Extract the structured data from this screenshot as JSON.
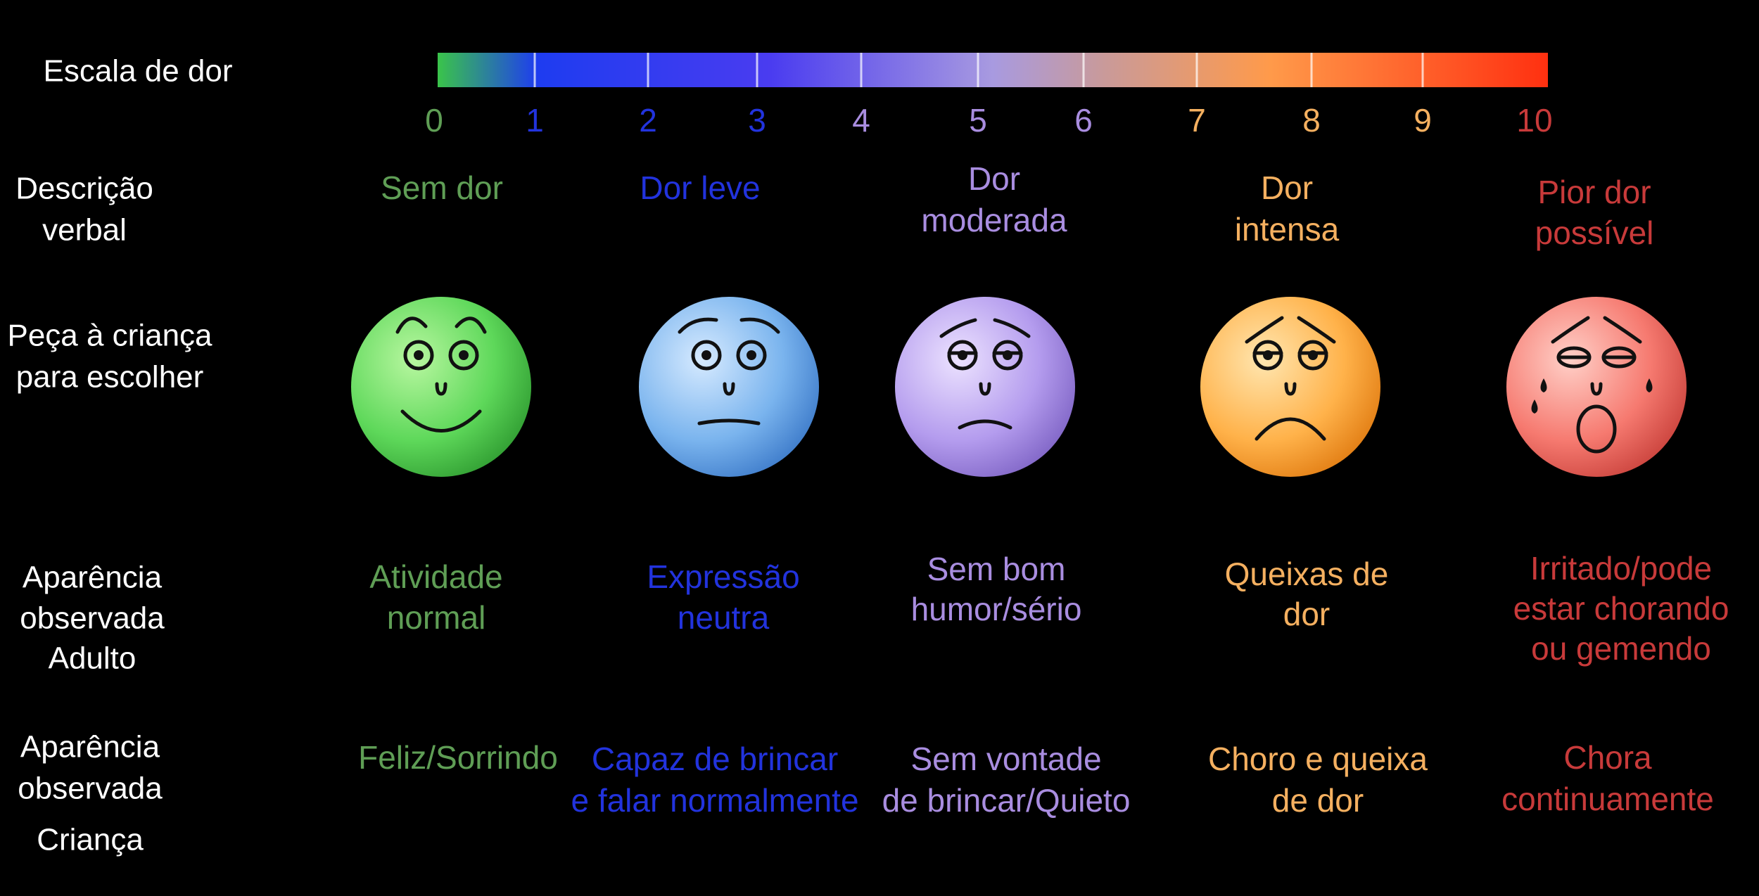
{
  "scale": {
    "title": "Escala de dor",
    "ticks": [
      0,
      1,
      2,
      3,
      4,
      5,
      6,
      7,
      8,
      9,
      10
    ]
  },
  "row_labels": {
    "description": [
      "Descrição",
      "verbal"
    ],
    "choose": [
      "Peça à criança",
      "para escolher"
    ],
    "adult": [
      "Aparência",
      "observada",
      "Adulto"
    ],
    "child": [
      "Aparência",
      "observada",
      "Criança"
    ]
  },
  "columns": [
    {
      "description": [
        "Sem dor"
      ],
      "adult": [
        "Atividade",
        "normal"
      ],
      "child": [
        "Feliz/Sorrindo"
      ]
    },
    {
      "description": [
        "Dor leve"
      ],
      "adult": [
        "Expressão",
        "neutra"
      ],
      "child": [
        "Capaz de brincar",
        "e falar normalmente"
      ]
    },
    {
      "description": [
        "Dor",
        "moderada"
      ],
      "adult": [
        "Sem bom",
        "humor/sério"
      ],
      "child": [
        "Sem vontade",
        "de brincar/Quieto"
      ]
    },
    {
      "description": [
        "Dor",
        "intensa"
      ],
      "adult": [
        "Queixas de",
        "dor"
      ],
      "child": [
        "Choro e queixa",
        "de dor"
      ]
    },
    {
      "description": [
        "Pior dor",
        "possível"
      ],
      "adult": [
        "Irritado/pode",
        "estar chorando",
        "ou gemendo"
      ],
      "child": [
        "Chora",
        "continuamente"
      ]
    }
  ]
}
